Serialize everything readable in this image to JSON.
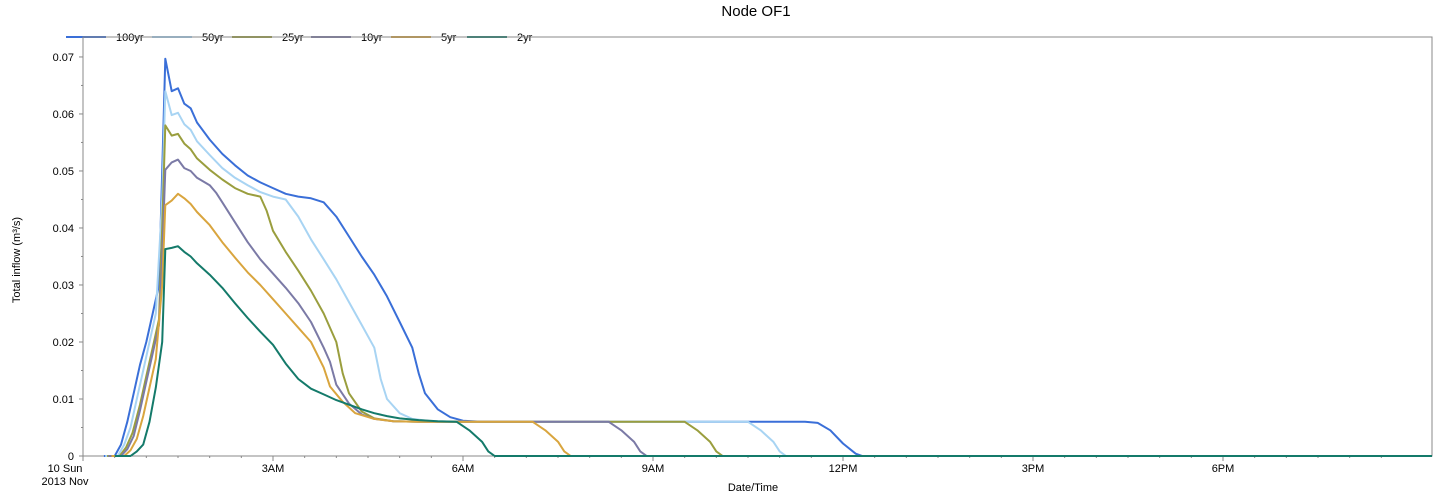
{
  "chart_data": {
    "type": "line",
    "title": "Node OF1",
    "xlabel": "Date/Time",
    "ylabel": "Total inflow (m³/s)",
    "x_unit": "hours since 10 Sun 2013 Nov 00:00",
    "xlim": [
      0,
      21.3
    ],
    "ylim": [
      0,
      0.0735
    ],
    "x_ticks": [
      {
        "value": 0,
        "label": "10 Sun",
        "sublabel": "2013 Nov"
      },
      {
        "value": 3,
        "label": "3AM"
      },
      {
        "value": 6,
        "label": "6AM"
      },
      {
        "value": 9,
        "label": "9AM"
      },
      {
        "value": 12,
        "label": "12PM"
      },
      {
        "value": 15,
        "label": "3PM"
      },
      {
        "value": 18,
        "label": "6PM"
      }
    ],
    "y_ticks": [
      {
        "value": 0,
        "label": "0"
      },
      {
        "value": 0.01,
        "label": "0.01"
      },
      {
        "value": 0.02,
        "label": "0.02"
      },
      {
        "value": 0.03,
        "label": "0.03"
      },
      {
        "value": 0.04,
        "label": "0.04"
      },
      {
        "value": 0.05,
        "label": "0.05"
      },
      {
        "value": 0.06,
        "label": "0.06"
      },
      {
        "value": 0.07,
        "label": "0.07"
      }
    ],
    "grid": false,
    "legend": "top-left",
    "series": [
      {
        "name": "100yr",
        "color": "#3a6fd8",
        "points": [
          [
            0.33,
            0
          ],
          [
            0.5,
            0
          ],
          [
            0.6,
            0.002
          ],
          [
            0.7,
            0.006
          ],
          [
            0.8,
            0.011
          ],
          [
            0.9,
            0.016
          ],
          [
            1.0,
            0.02
          ],
          [
            1.1,
            0.025
          ],
          [
            1.2,
            0.03
          ],
          [
            1.25,
            0.05
          ],
          [
            1.3,
            0.0697
          ],
          [
            1.4,
            0.064
          ],
          [
            1.5,
            0.0645
          ],
          [
            1.6,
            0.0618
          ],
          [
            1.7,
            0.061
          ],
          [
            1.8,
            0.0585
          ],
          [
            2.0,
            0.0555
          ],
          [
            2.2,
            0.053
          ],
          [
            2.4,
            0.051
          ],
          [
            2.6,
            0.0492
          ],
          [
            2.8,
            0.048
          ],
          [
            3.0,
            0.047
          ],
          [
            3.2,
            0.046
          ],
          [
            3.4,
            0.0455
          ],
          [
            3.6,
            0.0452
          ],
          [
            3.8,
            0.0445
          ],
          [
            4.0,
            0.042
          ],
          [
            4.2,
            0.0385
          ],
          [
            4.4,
            0.035
          ],
          [
            4.6,
            0.0318
          ],
          [
            4.8,
            0.028
          ],
          [
            5.0,
            0.0235
          ],
          [
            5.2,
            0.019
          ],
          [
            5.3,
            0.0145
          ],
          [
            5.4,
            0.011
          ],
          [
            5.6,
            0.0082
          ],
          [
            5.8,
            0.0068
          ],
          [
            6.0,
            0.0062
          ],
          [
            6.3,
            0.006
          ],
          [
            11.4,
            0.006
          ],
          [
            11.6,
            0.0058
          ],
          [
            11.8,
            0.0045
          ],
          [
            12.0,
            0.0022
          ],
          [
            12.2,
            0.0004
          ],
          [
            12.3,
            0
          ],
          [
            21.3,
            0
          ]
        ]
      },
      {
        "name": "50yr",
        "color": "#a8d4f3",
        "points": [
          [
            0.35,
            0
          ],
          [
            0.55,
            0
          ],
          [
            0.65,
            0.002
          ],
          [
            0.75,
            0.005
          ],
          [
            0.85,
            0.01
          ],
          [
            0.95,
            0.015
          ],
          [
            1.05,
            0.02
          ],
          [
            1.15,
            0.025
          ],
          [
            1.25,
            0.045
          ],
          [
            1.3,
            0.064
          ],
          [
            1.4,
            0.0598
          ],
          [
            1.5,
            0.0602
          ],
          [
            1.6,
            0.0582
          ],
          [
            1.7,
            0.0572
          ],
          [
            1.8,
            0.0552
          ],
          [
            2.0,
            0.0528
          ],
          [
            2.2,
            0.0505
          ],
          [
            2.4,
            0.0488
          ],
          [
            2.6,
            0.0475
          ],
          [
            2.8,
            0.0463
          ],
          [
            3.0,
            0.0455
          ],
          [
            3.2,
            0.045
          ],
          [
            3.4,
            0.042
          ],
          [
            3.6,
            0.038
          ],
          [
            3.8,
            0.0345
          ],
          [
            4.0,
            0.031
          ],
          [
            4.2,
            0.027
          ],
          [
            4.4,
            0.023
          ],
          [
            4.6,
            0.019
          ],
          [
            4.7,
            0.0135
          ],
          [
            4.8,
            0.01
          ],
          [
            5.0,
            0.0075
          ],
          [
            5.2,
            0.0065
          ],
          [
            5.5,
            0.0061
          ],
          [
            6.0,
            0.006
          ],
          [
            10.5,
            0.006
          ],
          [
            10.7,
            0.0045
          ],
          [
            10.9,
            0.0025
          ],
          [
            11.0,
            0.0008
          ],
          [
            11.1,
            0
          ],
          [
            21.3,
            0
          ]
        ]
      },
      {
        "name": "25yr",
        "color": "#9a9e3e",
        "points": [
          [
            0.38,
            0
          ],
          [
            0.58,
            0
          ],
          [
            0.68,
            0.0015
          ],
          [
            0.78,
            0.004
          ],
          [
            0.9,
            0.009
          ],
          [
            1.0,
            0.014
          ],
          [
            1.1,
            0.019
          ],
          [
            1.2,
            0.024
          ],
          [
            1.25,
            0.04
          ],
          [
            1.3,
            0.058
          ],
          [
            1.4,
            0.0562
          ],
          [
            1.5,
            0.0565
          ],
          [
            1.6,
            0.0548
          ],
          [
            1.7,
            0.0538
          ],
          [
            1.8,
            0.0522
          ],
          [
            2.0,
            0.0502
          ],
          [
            2.2,
            0.0485
          ],
          [
            2.4,
            0.047
          ],
          [
            2.6,
            0.046
          ],
          [
            2.8,
            0.0455
          ],
          [
            2.9,
            0.043
          ],
          [
            3.0,
            0.0395
          ],
          [
            3.2,
            0.0358
          ],
          [
            3.4,
            0.0325
          ],
          [
            3.6,
            0.029
          ],
          [
            3.8,
            0.025
          ],
          [
            4.0,
            0.02
          ],
          [
            4.1,
            0.0145
          ],
          [
            4.2,
            0.011
          ],
          [
            4.4,
            0.0078
          ],
          [
            4.6,
            0.0066
          ],
          [
            4.9,
            0.0061
          ],
          [
            5.3,
            0.006
          ],
          [
            9.5,
            0.006
          ],
          [
            9.7,
            0.0045
          ],
          [
            9.9,
            0.0025
          ],
          [
            10.0,
            0.0008
          ],
          [
            10.1,
            0
          ],
          [
            21.3,
            0
          ]
        ]
      },
      {
        "name": "10yr",
        "color": "#7b7aa6",
        "points": [
          [
            0.4,
            0
          ],
          [
            0.6,
            0
          ],
          [
            0.7,
            0.0012
          ],
          [
            0.8,
            0.0035
          ],
          [
            0.9,
            0.008
          ],
          [
            1.0,
            0.013
          ],
          [
            1.1,
            0.018
          ],
          [
            1.2,
            0.023
          ],
          [
            1.25,
            0.035
          ],
          [
            1.3,
            0.0502
          ],
          [
            1.4,
            0.0515
          ],
          [
            1.5,
            0.052
          ],
          [
            1.6,
            0.0505
          ],
          [
            1.7,
            0.05
          ],
          [
            1.8,
            0.0488
          ],
          [
            2.0,
            0.0475
          ],
          [
            2.1,
            0.0462
          ],
          [
            2.2,
            0.0445
          ],
          [
            2.4,
            0.041
          ],
          [
            2.6,
            0.0375
          ],
          [
            2.8,
            0.0345
          ],
          [
            3.0,
            0.032
          ],
          [
            3.2,
            0.0295
          ],
          [
            3.4,
            0.0268
          ],
          [
            3.6,
            0.0235
          ],
          [
            3.8,
            0.019
          ],
          [
            3.9,
            0.0165
          ],
          [
            4.0,
            0.0125
          ],
          [
            4.2,
            0.0092
          ],
          [
            4.4,
            0.0073
          ],
          [
            4.6,
            0.0065
          ],
          [
            4.9,
            0.0061
          ],
          [
            5.3,
            0.006
          ],
          [
            8.3,
            0.006
          ],
          [
            8.5,
            0.0045
          ],
          [
            8.7,
            0.0025
          ],
          [
            8.8,
            0.0008
          ],
          [
            8.9,
            0
          ],
          [
            21.3,
            0
          ]
        ]
      },
      {
        "name": "5yr",
        "color": "#d9a53e",
        "points": [
          [
            0.45,
            0
          ],
          [
            0.65,
            0
          ],
          [
            0.75,
            0.001
          ],
          [
            0.85,
            0.003
          ],
          [
            0.95,
            0.007
          ],
          [
            1.05,
            0.012
          ],
          [
            1.15,
            0.017
          ],
          [
            1.25,
            0.03
          ],
          [
            1.3,
            0.044
          ],
          [
            1.4,
            0.0448
          ],
          [
            1.5,
            0.046
          ],
          [
            1.6,
            0.0452
          ],
          [
            1.7,
            0.0442
          ],
          [
            1.8,
            0.0428
          ],
          [
            2.0,
            0.0405
          ],
          [
            2.2,
            0.0375
          ],
          [
            2.4,
            0.0348
          ],
          [
            2.6,
            0.0322
          ],
          [
            2.8,
            0.03
          ],
          [
            3.0,
            0.0275
          ],
          [
            3.2,
            0.025
          ],
          [
            3.4,
            0.0225
          ],
          [
            3.6,
            0.02
          ],
          [
            3.8,
            0.0155
          ],
          [
            3.9,
            0.0122
          ],
          [
            4.1,
            0.0095
          ],
          [
            4.3,
            0.0075
          ],
          [
            4.6,
            0.0065
          ],
          [
            4.9,
            0.0061
          ],
          [
            5.3,
            0.006
          ],
          [
            7.1,
            0.006
          ],
          [
            7.3,
            0.0045
          ],
          [
            7.5,
            0.0025
          ],
          [
            7.6,
            0.0008
          ],
          [
            7.7,
            0
          ],
          [
            21.3,
            0
          ]
        ]
      },
      {
        "name": "2yr",
        "color": "#147a6a",
        "points": [
          [
            0.5,
            0
          ],
          [
            0.75,
            0
          ],
          [
            0.85,
            0.0008
          ],
          [
            0.95,
            0.002
          ],
          [
            1.05,
            0.006
          ],
          [
            1.15,
            0.012
          ],
          [
            1.25,
            0.02
          ],
          [
            1.3,
            0.0363
          ],
          [
            1.4,
            0.0365
          ],
          [
            1.5,
            0.0368
          ],
          [
            1.6,
            0.0358
          ],
          [
            1.7,
            0.035
          ],
          [
            1.8,
            0.0338
          ],
          [
            2.0,
            0.0318
          ],
          [
            2.2,
            0.0295
          ],
          [
            2.4,
            0.0268
          ],
          [
            2.6,
            0.0242
          ],
          [
            2.8,
            0.0218
          ],
          [
            3.0,
            0.0195
          ],
          [
            3.2,
            0.0162
          ],
          [
            3.4,
            0.0135
          ],
          [
            3.6,
            0.0118
          ],
          [
            3.8,
            0.0108
          ],
          [
            4.0,
            0.0098
          ],
          [
            4.2,
            0.009
          ],
          [
            4.4,
            0.0082
          ],
          [
            4.6,
            0.0075
          ],
          [
            4.8,
            0.007
          ],
          [
            5.0,
            0.0066
          ],
          [
            5.3,
            0.0063
          ],
          [
            5.6,
            0.0061
          ],
          [
            5.9,
            0.006
          ],
          [
            6.1,
            0.0045
          ],
          [
            6.3,
            0.0025
          ],
          [
            6.4,
            0.0008
          ],
          [
            6.5,
            0
          ],
          [
            21.3,
            0
          ]
        ]
      }
    ]
  }
}
